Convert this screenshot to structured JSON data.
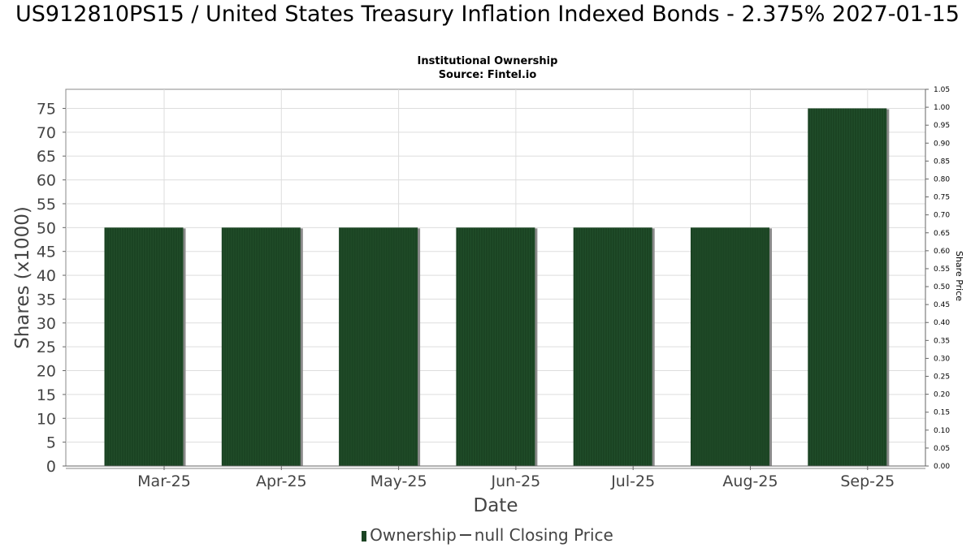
{
  "title": "US912810PS15 / United States Treasury Inflation Indexed Bonds - 2.375% 2027-01-15",
  "subtitle": "Institutional Ownership",
  "source": "Source: Fintel.io",
  "colors": {
    "bar": "#1b4423",
    "bar_shadow": "#8a8a8a",
    "grid": "#dddddd",
    "axis_text": "#444444"
  },
  "legend": {
    "ownership_label": "Ownership",
    "price_label": "null Closing Price"
  },
  "chart_data": {
    "type": "bar",
    "title": "US912810PS15 / United States Treasury Inflation Indexed Bonds - 2.375% 2027-01-15",
    "subtitle": "Institutional Ownership",
    "xlabel": "Date",
    "ylabel": "Shares (x1000)",
    "y2label": "Share Price",
    "categories": [
      "Mar-25",
      "Apr-25",
      "May-25",
      "Jun-25",
      "Jul-25",
      "Aug-25",
      "Sep-25"
    ],
    "series": [
      {
        "name": "Ownership",
        "values": [
          50,
          50,
          50,
          50,
          50,
          50,
          75
        ]
      }
    ],
    "ylim": [
      0,
      79
    ],
    "yticks": [
      0,
      5,
      10,
      15,
      20,
      25,
      30,
      35,
      40,
      45,
      50,
      55,
      60,
      65,
      70,
      75
    ],
    "y2lim": [
      0,
      1.05
    ],
    "y2ticks": [
      "0.00",
      "0.05",
      "0.10",
      "0.15",
      "0.20",
      "0.25",
      "0.30",
      "0.35",
      "0.40",
      "0.45",
      "0.50",
      "0.55",
      "0.60",
      "0.65",
      "0.70",
      "0.75",
      "0.80",
      "0.85",
      "0.90",
      "0.95",
      "1.00",
      "1.05"
    ],
    "grid": true,
    "legend_position": "bottom"
  }
}
